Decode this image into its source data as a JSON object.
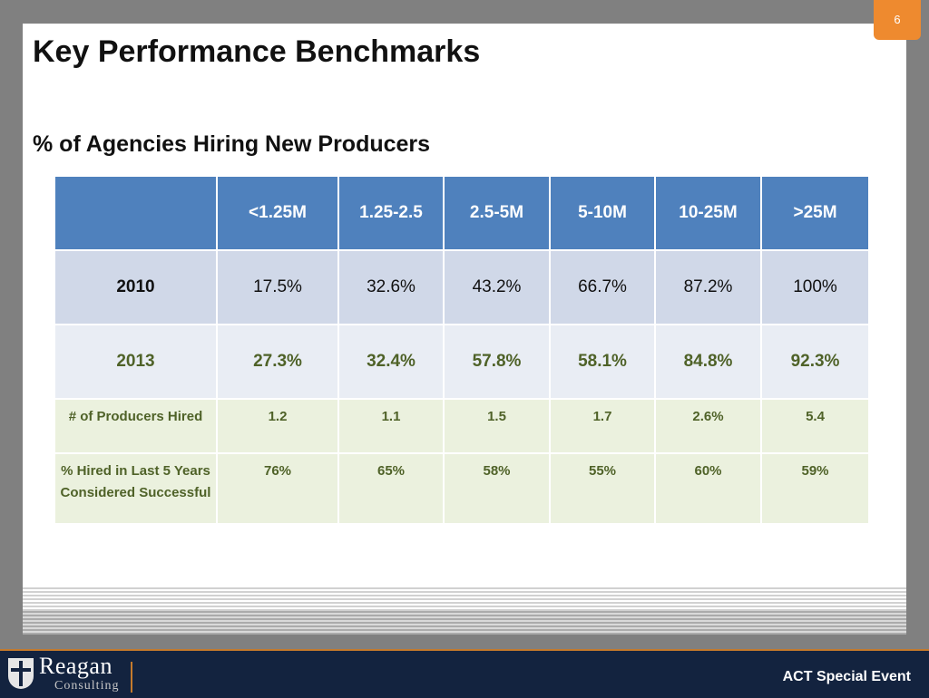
{
  "slide": {
    "page_number": "6",
    "title": "Key Performance Benchmarks",
    "subtitle": "% of Agencies Hiring New Producers"
  },
  "table": {
    "header_blank": "",
    "columns": [
      "<1.25M",
      "1.25-2.5",
      "2.5-5M",
      "5-10M",
      "10-25M",
      ">25M"
    ],
    "rows": [
      {
        "label": "2010",
        "values": [
          "17.5%",
          "32.6%",
          "43.2%",
          "66.7%",
          "87.2%",
          "100%"
        ]
      },
      {
        "label": "2013",
        "values": [
          "27.3%",
          "32.4%",
          "57.8%",
          "58.1%",
          "84.8%",
          "92.3%"
        ]
      },
      {
        "label": "# of Producers Hired",
        "values": [
          "1.2",
          "1.1",
          "1.5",
          "1.7",
          "2.6%",
          "5.4"
        ]
      },
      {
        "label": "% Hired in Last 5 Years Considered Successful",
        "values": [
          "76%",
          "65%",
          "58%",
          "55%",
          "60%",
          "59%"
        ]
      }
    ]
  },
  "footer": {
    "brand_name": "Reagan",
    "brand_sub": "Consulting",
    "logo_icon": "shield-cross-icon",
    "event_label": "ACT Special Event"
  },
  "colors": {
    "header_blue": "#4f81bd",
    "row_2010": "#d0d8e8",
    "row_2013": "#e9edf4",
    "row_green": "#ebf1de",
    "text_green": "#4f6228",
    "page_tab_orange": "#ee8a2f",
    "footer_navy": "#13233f"
  }
}
